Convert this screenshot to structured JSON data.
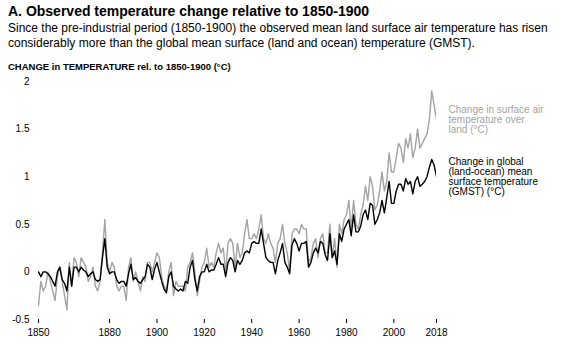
{
  "chart_data": {
    "type": "line",
    "title": "A. Observed temperature change relative to 1850-1900",
    "subtitle": "Since the pre-industrial period (1850-1900) the observed mean land surface air temperature has risen considerably more than the global mean surface (land and ocean) temperature (GMST).",
    "ylabel": "CHANGE in TEMPERATURE rel. to 1850-1900 (°C)",
    "x": [
      1850,
      1851,
      1852,
      1853,
      1854,
      1855,
      1856,
      1857,
      1858,
      1859,
      1860,
      1861,
      1862,
      1863,
      1864,
      1865,
      1866,
      1867,
      1868,
      1869,
      1870,
      1871,
      1872,
      1873,
      1874,
      1875,
      1876,
      1877,
      1878,
      1879,
      1880,
      1881,
      1882,
      1883,
      1884,
      1885,
      1886,
      1887,
      1888,
      1889,
      1890,
      1891,
      1892,
      1893,
      1894,
      1895,
      1896,
      1897,
      1898,
      1899,
      1900,
      1901,
      1902,
      1903,
      1904,
      1905,
      1906,
      1907,
      1908,
      1909,
      1910,
      1911,
      1912,
      1913,
      1914,
      1915,
      1916,
      1917,
      1918,
      1919,
      1920,
      1921,
      1922,
      1923,
      1924,
      1925,
      1926,
      1927,
      1928,
      1929,
      1930,
      1931,
      1932,
      1933,
      1934,
      1935,
      1936,
      1937,
      1938,
      1939,
      1940,
      1941,
      1942,
      1943,
      1944,
      1945,
      1946,
      1947,
      1948,
      1949,
      1950,
      1951,
      1952,
      1953,
      1954,
      1955,
      1956,
      1957,
      1958,
      1959,
      1960,
      1961,
      1962,
      1963,
      1964,
      1965,
      1966,
      1967,
      1968,
      1969,
      1970,
      1971,
      1972,
      1973,
      1974,
      1975,
      1976,
      1977,
      1978,
      1979,
      1980,
      1981,
      1982,
      1983,
      1984,
      1985,
      1986,
      1987,
      1988,
      1989,
      1990,
      1991,
      1992,
      1993,
      1994,
      1995,
      1996,
      1997,
      1998,
      1999,
      2000,
      2001,
      2002,
      2003,
      2004,
      2005,
      2006,
      2007,
      2008,
      2009,
      2010,
      2011,
      2012,
      2013,
      2014,
      2015,
      2016,
      2017,
      2018
    ],
    "series": [
      {
        "name": "Change in surface air temperature over land (°C)",
        "color": "#a3a3a3",
        "values": [
          -0.35,
          -0.1,
          -0.2,
          -0.15,
          0.0,
          -0.1,
          -0.2,
          -0.3,
          -0.05,
          0.05,
          -0.1,
          -0.25,
          -0.4,
          0.1,
          -0.15,
          0.15,
          0.1,
          -0.05,
          0.15,
          0.1,
          0.05,
          -0.1,
          -0.05,
          0.05,
          -0.15,
          -0.2,
          -0.1,
          0.2,
          0.55,
          0.1,
          0.0,
          0.1,
          0.05,
          -0.15,
          -0.2,
          -0.15,
          -0.15,
          -0.3,
          0.05,
          0.15,
          -0.1,
          0.0,
          -0.1,
          -0.2,
          -0.05,
          -0.1,
          0.1,
          0.1,
          0.0,
          0.1,
          0.2,
          0.15,
          -0.05,
          -0.15,
          -0.2,
          0.0,
          0.1,
          -0.25,
          -0.1,
          -0.15,
          -0.15,
          -0.15,
          -0.2,
          0.05,
          0.1,
          0.2,
          0.0,
          -0.25,
          -0.1,
          0.05,
          0.1,
          0.25,
          0.05,
          0.1,
          0.05,
          0.2,
          0.3,
          0.2,
          0.25,
          0.0,
          0.3,
          0.35,
          0.3,
          0.05,
          0.3,
          0.15,
          0.2,
          0.4,
          0.55,
          0.35,
          0.35,
          0.4,
          0.35,
          0.45,
          0.6,
          0.35,
          0.3,
          0.4,
          0.3,
          0.25,
          0.1,
          0.3,
          0.35,
          0.5,
          0.3,
          0.2,
          0.0,
          0.4,
          0.45,
          0.45,
          0.4,
          0.5,
          0.45,
          0.45,
          0.1,
          0.15,
          0.3,
          0.35,
          0.15,
          0.35,
          0.4,
          0.2,
          0.2,
          0.5,
          0.15,
          0.35,
          0.05,
          0.5,
          0.4,
          0.55,
          0.6,
          0.75,
          0.45,
          0.75,
          0.5,
          0.45,
          0.6,
          0.7,
          0.9,
          0.75,
          1.0,
          0.9,
          0.65,
          0.7,
          0.85,
          1.05,
          0.85,
          0.95,
          1.25,
          1.05,
          1.05,
          1.2,
          1.35,
          1.3,
          1.15,
          1.4,
          1.3,
          1.45,
          1.2,
          1.3,
          1.5,
          1.3,
          1.35,
          1.4,
          1.45,
          1.6,
          1.9,
          1.75,
          1.6
        ]
      },
      {
        "name": "Change in global (land-ocean) mean surface temperature (GMST) (°C)",
        "color": "#000000",
        "values": [
          0.0,
          -0.05,
          0.0,
          0.0,
          -0.02,
          -0.05,
          -0.1,
          -0.15,
          0.0,
          0.05,
          -0.08,
          -0.12,
          -0.2,
          0.05,
          -0.15,
          0.05,
          0.05,
          0.0,
          0.05,
          0.02,
          0.0,
          -0.05,
          -0.02,
          0.0,
          -0.08,
          -0.1,
          -0.08,
          0.15,
          0.35,
          0.05,
          -0.02,
          0.0,
          0.0,
          -0.08,
          -0.12,
          -0.1,
          -0.1,
          -0.15,
          -0.02,
          0.08,
          -0.08,
          -0.06,
          -0.1,
          -0.12,
          -0.08,
          -0.05,
          0.08,
          0.05,
          -0.08,
          0.03,
          0.1,
          0.0,
          -0.1,
          -0.18,
          -0.22,
          -0.05,
          0.0,
          -0.15,
          -0.18,
          -0.2,
          -0.18,
          -0.2,
          -0.1,
          -0.12,
          0.05,
          0.12,
          -0.08,
          -0.2,
          -0.05,
          0.0,
          0.0,
          0.08,
          0.0,
          0.02,
          0.02,
          0.08,
          0.15,
          0.08,
          0.08,
          -0.05,
          0.1,
          0.15,
          0.12,
          0.0,
          0.12,
          0.08,
          0.12,
          0.2,
          0.22,
          0.2,
          0.3,
          0.32,
          0.3,
          0.3,
          0.45,
          0.3,
          0.15,
          0.12,
          0.1,
          0.1,
          -0.02,
          0.12,
          0.2,
          0.3,
          0.1,
          0.05,
          -0.02,
          0.28,
          0.35,
          0.3,
          0.22,
          0.3,
          0.3,
          0.32,
          0.05,
          0.1,
          0.2,
          0.25,
          0.2,
          0.32,
          0.3,
          0.18,
          0.12,
          0.4,
          0.15,
          0.22,
          0.08,
          0.4,
          0.32,
          0.45,
          0.5,
          0.55,
          0.38,
          0.6,
          0.42,
          0.42,
          0.48,
          0.6,
          0.65,
          0.55,
          0.72,
          0.7,
          0.5,
          0.55,
          0.62,
          0.75,
          0.62,
          0.78,
          0.95,
          0.72,
          0.72,
          0.85,
          0.92,
          0.92,
          0.85,
          0.98,
          0.92,
          0.95,
          0.82,
          0.95,
          1.0,
          0.9,
          0.92,
          0.95,
          1.0,
          1.1,
          1.18,
          1.12,
          1.0
        ]
      }
    ],
    "xlim": [
      1850,
      2018
    ],
    "xticks": [
      1850,
      1880,
      1900,
      1920,
      1940,
      1960,
      1980,
      2000,
      2018
    ],
    "ylim": [
      -0.5,
      2
    ],
    "yticks": [
      -0.5,
      0,
      0.5,
      1,
      1.5,
      2
    ],
    "grid": false
  }
}
